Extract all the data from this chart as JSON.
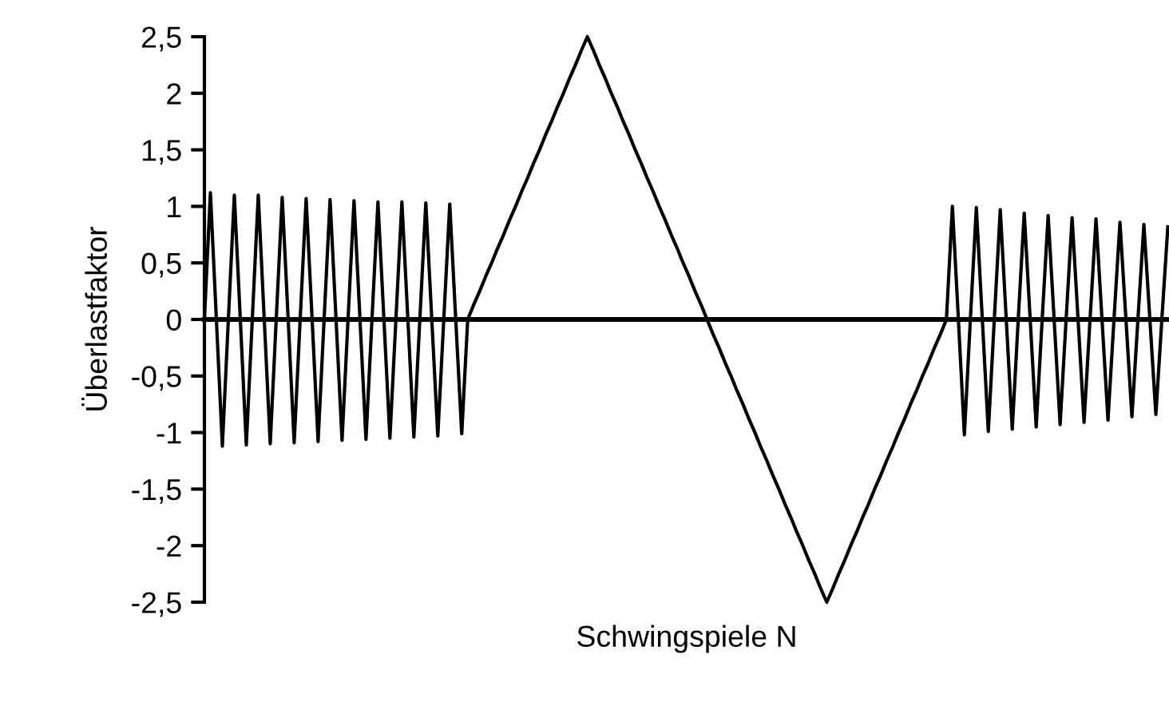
{
  "chart_data": {
    "type": "line",
    "xlabel": "Schwingspiele N",
    "ylabel": "Überlastfaktor",
    "categories": [
      null,
      null,
      null,
      null,
      null,
      null,
      null,
      null,
      null,
      null,
      null,
      null,
      null,
      null,
      null,
      null,
      null,
      null,
      null,
      null,
      null,
      null,
      null,
      null,
      null,
      null,
      null,
      null,
      null,
      null,
      null,
      null,
      null,
      null,
      null,
      null,
      null,
      null,
      null,
      null,
      null,
      null,
      null,
      null,
      null,
      null,
      null,
      null,
      null,
      null,
      null,
      null,
      null,
      null,
      null,
      null,
      null,
      null,
      null,
      null,
      null,
      null,
      null,
      null,
      null,
      null,
      null,
      null,
      null,
      null,
      null,
      null,
      null,
      null,
      null,
      null,
      null,
      null,
      null,
      null,
      null,
      null,
      null,
      null,
      null,
      null,
      null,
      null,
      null,
      null,
      null,
      null,
      null,
      null,
      null,
      null,
      null,
      null,
      null,
      null,
      null,
      null,
      null,
      null,
      null,
      null,
      null,
      null,
      null,
      null,
      null,
      null,
      null,
      null,
      null,
      null,
      null,
      null,
      null,
      null,
      null,
      null,
      null,
      null,
      null,
      null,
      null,
      null,
      null,
      null,
      null,
      null,
      null,
      null,
      null,
      null,
      null,
      null,
      null,
      null,
      null,
      null,
      null,
      null,
      null,
      null,
      null,
      null,
      null,
      null,
      null,
      null,
      null,
      null,
      null,
      null,
      null,
      null,
      null,
      null,
      null,
      null
    ],
    "series": [
      {
        "color": "#000000",
        "values": [
          0,
          1.12,
          0,
          -1.12,
          0,
          1.1,
          0,
          -1.11,
          0,
          1.1,
          0,
          -1.1,
          0,
          1.08,
          0,
          -1.09,
          0,
          1.07,
          0,
          -1.08,
          0,
          1.06,
          0,
          -1.07,
          0,
          1.05,
          0,
          -1.06,
          0,
          1.04,
          0,
          -1.05,
          0,
          1.04,
          0,
          -1.04,
          0,
          1.03,
          0,
          -1.03,
          0,
          1.02,
          0,
          -1.01,
          0,
          0.13,
          0.25,
          0.38,
          0.5,
          0.63,
          0.75,
          0.88,
          1,
          1.13,
          1.25,
          1.38,
          1.5,
          1.63,
          1.75,
          1.88,
          2,
          2.13,
          2.25,
          2.38,
          2.5,
          2.38,
          2.25,
          2.13,
          2,
          1.88,
          1.75,
          1.63,
          1.5,
          1.38,
          1.25,
          1.13,
          1,
          0.88,
          0.75,
          0.63,
          0.5,
          0.38,
          0.25,
          0.13,
          0,
          -0.13,
          -0.25,
          -0.38,
          -0.5,
          -0.63,
          -0.75,
          -0.88,
          -1,
          -1.13,
          -1.25,
          -1.38,
          -1.5,
          -1.63,
          -1.75,
          -1.88,
          -2,
          -2.13,
          -2.25,
          -2.38,
          -2.5,
          -2.38,
          -2.25,
          -2.13,
          -2,
          -1.88,
          -1.75,
          -1.63,
          -1.5,
          -1.38,
          -1.25,
          -1.13,
          -1,
          -0.88,
          -0.75,
          -0.63,
          -0.5,
          -0.38,
          -0.25,
          -0.13,
          0,
          1.0,
          0,
          -1.02,
          0,
          0.99,
          0,
          -0.99,
          0,
          0.97,
          0,
          -0.97,
          0,
          0.94,
          0,
          -0.95,
          0,
          0.92,
          0,
          -0.93,
          0,
          0.9,
          0,
          -0.91,
          0,
          0.89,
          0,
          -0.89,
          0,
          0.86,
          0,
          -0.86,
          0,
          0.84,
          0,
          -0.84,
          0,
          0.82
        ]
      }
    ],
    "ylim": [
      -2.5,
      2.5
    ],
    "yticks": [
      {
        "value": -2.5,
        "label": "-2,5"
      },
      -2,
      {
        "value": -1.5,
        "label": "-1,5"
      },
      -1,
      {
        "value": -0.5,
        "label": "-0,5"
      },
      0,
      {
        "value": 0.5,
        "label": "0,5"
      },
      1,
      {
        "value": 1.5,
        "label": "1,5"
      },
      2,
      {
        "value": 2.5,
        "label": "2,5"
      }
    ],
    "legend": false,
    "marker": "none",
    "line_style": "solid"
  }
}
